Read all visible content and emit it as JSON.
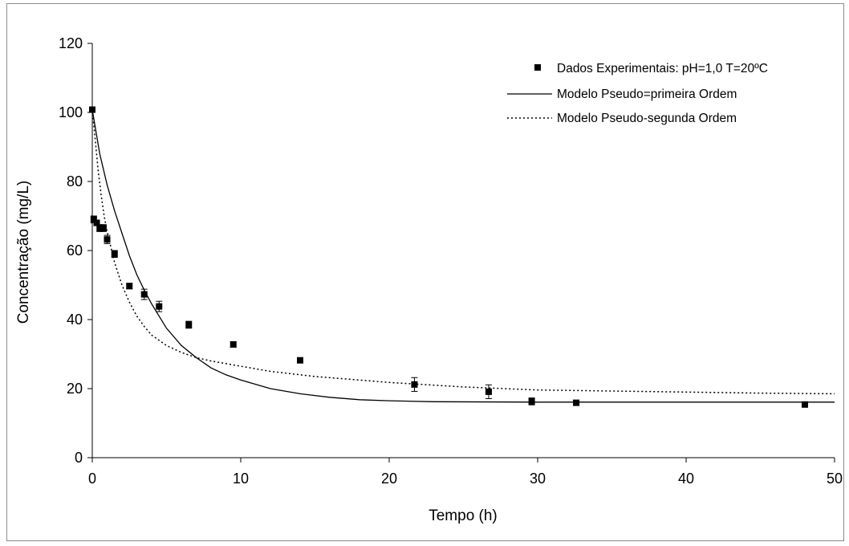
{
  "chart_data": {
    "type": "scatter",
    "xlabel": "Tempo (h)",
    "ylabel": "Concentração (mg/L)",
    "xlim": [
      0,
      50
    ],
    "ylim": [
      0,
      120
    ],
    "x_ticks": [
      "0",
      "10",
      "20",
      "30",
      "40",
      "50"
    ],
    "y_ticks": [
      "0",
      "20",
      "40",
      "60",
      "80",
      "100",
      "120"
    ],
    "grid": false,
    "legend_position": "top-right",
    "series": [
      {
        "name": "Dados Experimentais: pH=1,0  T=20ºC",
        "kind": "markers",
        "color": "#000000",
        "x": [
          0,
          0.1,
          0.3,
          0.5,
          0.75,
          1.0,
          1.5,
          2.5,
          3.5,
          4.5,
          6.5,
          9.5,
          14,
          21.7,
          26.7,
          29.6,
          32.6,
          48
        ],
        "y": [
          100.8,
          69,
          68,
          66.5,
          66.5,
          63.2,
          59,
          49.7,
          47.3,
          43.8,
          38.5,
          32.8,
          28.2,
          21.2,
          19.1,
          16.3,
          15.9,
          15.4
        ],
        "error": [
          0.5,
          1.0,
          0.8,
          1.0,
          1.0,
          1.2,
          1.0,
          0.8,
          1.5,
          1.5,
          1.0,
          0.8,
          0.6,
          2.0,
          2.0,
          1.0,
          0.6,
          0.6
        ]
      },
      {
        "name": "Modelo Pseudo=primeira Ordem",
        "kind": "line",
        "style": "solid",
        "color": "#000000",
        "x": [
          0,
          0.5,
          1,
          1.5,
          2,
          2.5,
          3,
          3.5,
          4,
          5,
          6,
          7,
          8,
          9,
          10,
          12,
          14,
          16,
          18,
          20,
          23,
          30,
          40,
          50
        ],
        "y": [
          100.8,
          88,
          79,
          71.5,
          65,
          58.5,
          53,
          48.5,
          44.5,
          37.5,
          32.5,
          29,
          26,
          24,
          22.5,
          20,
          18.5,
          17.5,
          16.8,
          16.5,
          16.2,
          16.1,
          16.1,
          16.1
        ]
      },
      {
        "name": "Modelo Pseudo-segunda Ordem",
        "kind": "line",
        "style": "dotted",
        "color": "#000000",
        "x": [
          0,
          0.2,
          0.4,
          0.6,
          0.8,
          1,
          1.5,
          2,
          2.5,
          3,
          3.5,
          4,
          5,
          6,
          7,
          8,
          10,
          12,
          15,
          20,
          25,
          30,
          35,
          40,
          45,
          50
        ],
        "y": [
          100.8,
          92,
          83,
          76,
          70,
          65.5,
          56.5,
          50,
          45,
          41,
          38,
          35.5,
          32.5,
          30.5,
          29,
          28,
          26.5,
          25,
          23.5,
          21.8,
          20.5,
          19.6,
          19.3,
          19.0,
          18.7,
          18.5
        ]
      }
    ]
  }
}
